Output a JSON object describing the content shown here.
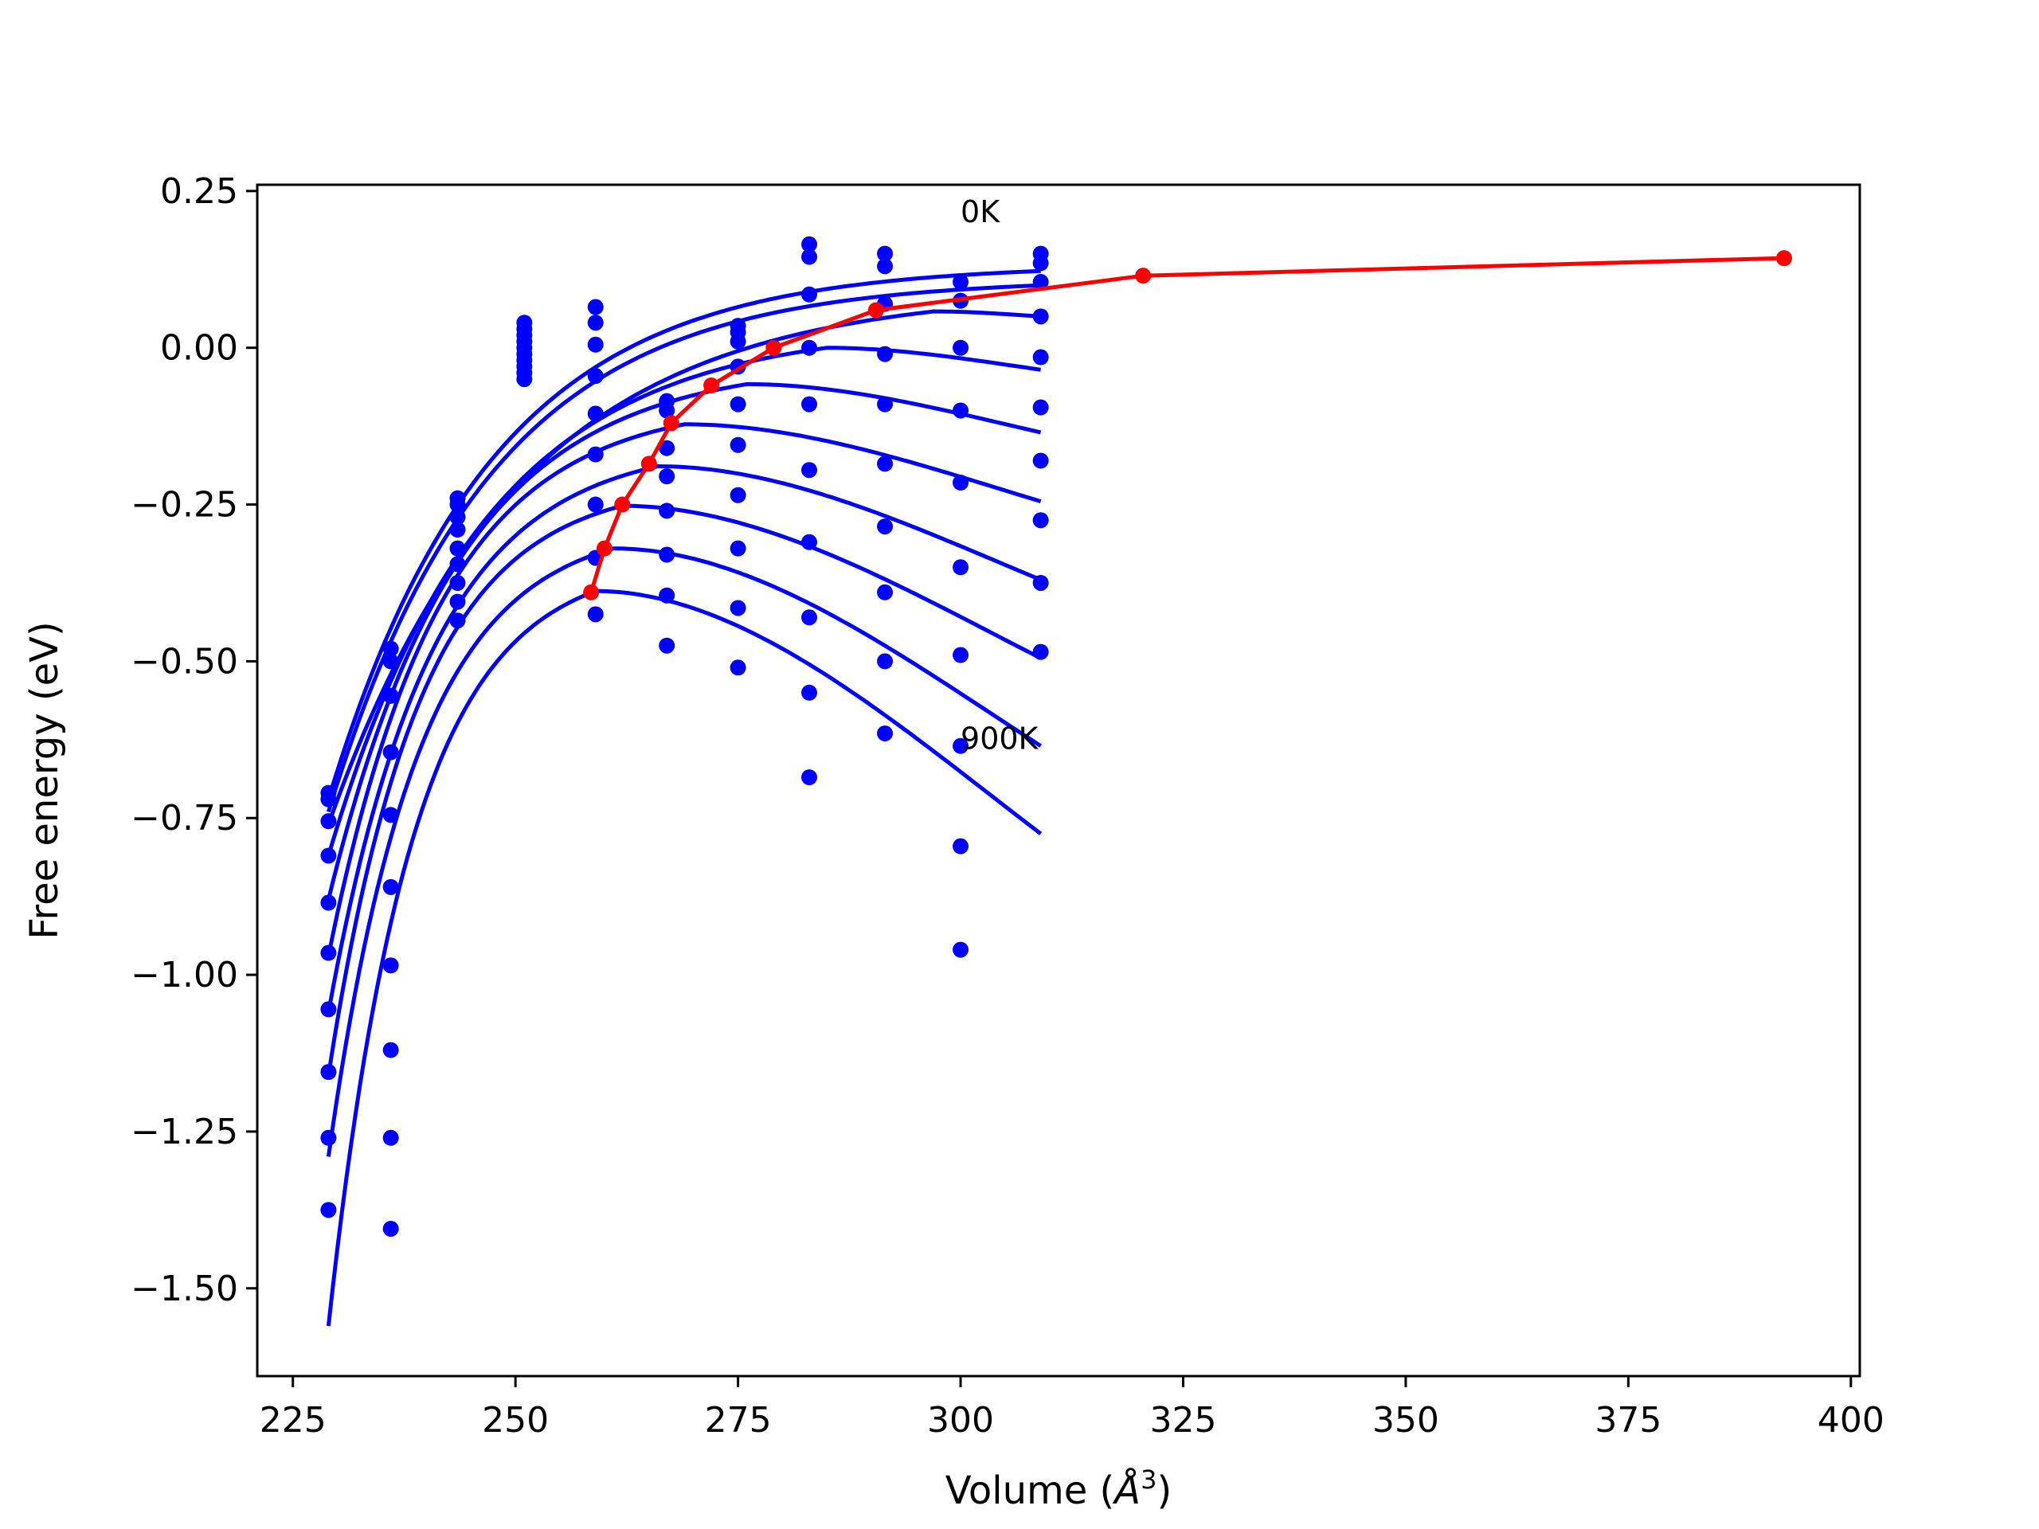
{
  "chart_data": {
    "type": "line",
    "xlabel": "Volume (",
    "xlabel_unit": "Å",
    "xlabel_exp": "3",
    "xlabel_close": ")",
    "ylabel": "Free energy (eV)",
    "xlim": [
      221,
      401
    ],
    "ylim": [
      -1.64,
      0.26
    ],
    "xticks": [
      225,
      250,
      275,
      300,
      325,
      350,
      375,
      400
    ],
    "xtick_labels": [
      "225",
      "250",
      "275",
      "300",
      "325",
      "350",
      "375",
      "400"
    ],
    "yticks": [
      0.25,
      0.0,
      -0.25,
      -0.5,
      -0.75,
      -1.0,
      -1.25,
      -1.5
    ],
    "ytick_labels": [
      "0.25",
      "0.00",
      "−0.25",
      "−0.50",
      "−0.75",
      "−1.00",
      "−1.25",
      "−1.50"
    ],
    "grid": false,
    "legend": "none",
    "colors": {
      "curves": "#0000ff",
      "minima": "#ff0000",
      "axes": "#000000"
    },
    "annotations": [
      {
        "text": "0K",
        "x": 300,
        "y": 0.2
      },
      {
        "text": "900K",
        "x": 300,
        "y": -0.64
      }
    ],
    "fit_x_range": [
      229,
      309
    ],
    "fit_curves": [
      {
        "min": 0.0,
        "max_end": 0.133,
        "e0": -0.72,
        "v0": 229,
        "shape": "rise"
      },
      {
        "min": 0.0,
        "max_end": 0.11,
        "e0": -0.74,
        "v0": 229,
        "shape": "rise"
      },
      {
        "v_peak": 297,
        "e_peak": 0.058,
        "e_end": 0.05,
        "e0": -0.76,
        "v0": 229
      },
      {
        "v_peak": 285,
        "e_peak": 0.0,
        "e_end": -0.035,
        "e0": -0.81,
        "v0": 229
      },
      {
        "v_peak": 276,
        "e_peak": -0.058,
        "e_end": -0.135,
        "e0": -0.88,
        "v0": 229
      },
      {
        "v_peak": 269,
        "e_peak": -0.122,
        "e_end": -0.245,
        "e0": -0.97,
        "v0": 229
      },
      {
        "v_peak": 266,
        "e_peak": -0.189,
        "e_end": -0.37,
        "e0": -1.06,
        "v0": 229
      },
      {
        "v_peak": 262,
        "e_peak": -0.252,
        "e_end": -0.495,
        "e0": -1.16,
        "v0": 229
      },
      {
        "v_peak": 261,
        "e_peak": -0.32,
        "e_end": -0.635,
        "e0": -1.29,
        "v0": 229
      },
      {
        "v_peak": 259,
        "e_peak": -0.388,
        "e_end": -0.775,
        "e0": -1.56,
        "v0": 229
      }
    ],
    "series": [
      {
        "x": [
          229,
          236,
          244,
          251,
          259,
          267,
          275,
          283,
          291.5,
          300,
          309
        ],
        "points": [
          [
            229,
            -0.71
          ],
          [
            229,
            -0.72
          ],
          [
            229,
            -0.755
          ],
          [
            229,
            -0.81
          ],
          [
            229,
            -0.885
          ],
          [
            229,
            -0.965
          ],
          [
            229,
            -1.055
          ],
          [
            229,
            -1.155
          ],
          [
            229,
            -1.26
          ],
          [
            229,
            -1.375
          ],
          [
            236,
            -0.48
          ],
          [
            236,
            -0.5
          ],
          [
            236,
            -0.555
          ],
          [
            236,
            -0.645
          ],
          [
            236,
            -0.745
          ],
          [
            236,
            -0.86
          ],
          [
            236,
            -0.985
          ],
          [
            236,
            -1.12
          ],
          [
            236,
            -1.26
          ],
          [
            236,
            -1.405
          ],
          [
            243.5,
            -0.24
          ],
          [
            243.5,
            -0.25
          ],
          [
            243.5,
            -0.27
          ],
          [
            243.5,
            -0.29
          ],
          [
            243.5,
            -0.32
          ],
          [
            243.5,
            -0.345
          ],
          [
            243.5,
            -0.375
          ],
          [
            243.5,
            -0.405
          ],
          [
            243.5,
            -0.435
          ],
          [
            251,
            0.04
          ],
          [
            251,
            0.03
          ],
          [
            251,
            0.02
          ],
          [
            251,
            0.01
          ],
          [
            251,
            0.0
          ],
          [
            251,
            -0.01
          ],
          [
            251,
            -0.02
          ],
          [
            251,
            -0.03
          ],
          [
            251,
            -0.04
          ],
          [
            251,
            -0.05
          ],
          [
            259,
            0.065
          ],
          [
            259,
            0.04
          ],
          [
            259,
            0.005
          ],
          [
            259,
            -0.045
          ],
          [
            259,
            -0.105
          ],
          [
            259,
            -0.17
          ],
          [
            259,
            -0.25
          ],
          [
            259,
            -0.335
          ],
          [
            259,
            -0.425
          ],
          [
            267,
            -0.085
          ],
          [
            267,
            -0.1
          ],
          [
            267,
            -0.16
          ],
          [
            267,
            -0.205
          ],
          [
            267,
            -0.26
          ],
          [
            267,
            -0.33
          ],
          [
            267,
            -0.395
          ],
          [
            267,
            -0.475
          ],
          [
            275,
            0.035
          ],
          [
            275,
            0.025
          ],
          [
            275,
            0.01
          ],
          [
            275,
            -0.03
          ],
          [
            275,
            -0.09
          ],
          [
            275,
            -0.155
          ],
          [
            275,
            -0.235
          ],
          [
            275,
            -0.32
          ],
          [
            275,
            -0.415
          ],
          [
            275,
            -0.51
          ],
          [
            283,
            0.165
          ],
          [
            283,
            0.145
          ],
          [
            283,
            0.085
          ],
          [
            283,
            0.0
          ],
          [
            283,
            -0.09
          ],
          [
            283,
            -0.195
          ],
          [
            283,
            -0.31
          ],
          [
            283,
            -0.43
          ],
          [
            283,
            -0.55
          ],
          [
            283,
            -0.685
          ],
          [
            291.5,
            0.15
          ],
          [
            291.5,
            0.13
          ],
          [
            291.5,
            0.07
          ],
          [
            291.5,
            -0.01
          ],
          [
            291.5,
            -0.09
          ],
          [
            291.5,
            -0.185
          ],
          [
            291.5,
            -0.285
          ],
          [
            291.5,
            -0.39
          ],
          [
            291.5,
            -0.5
          ],
          [
            291.5,
            -0.615
          ],
          [
            300,
            0.105
          ],
          [
            300,
            0.075
          ],
          [
            300,
            0.0
          ],
          [
            300,
            -0.1
          ],
          [
            300,
            -0.215
          ],
          [
            300,
            -0.35
          ],
          [
            300,
            -0.49
          ],
          [
            300,
            -0.635
          ],
          [
            300,
            -0.795
          ],
          [
            300,
            -0.96
          ],
          [
            309,
            0.15
          ],
          [
            309,
            0.135
          ],
          [
            309,
            0.105
          ],
          [
            309,
            0.05
          ],
          [
            309,
            -0.015
          ],
          [
            309,
            -0.095
          ],
          [
            309,
            -0.18
          ],
          [
            309,
            -0.275
          ],
          [
            309,
            -0.375
          ],
          [
            309,
            -0.485
          ]
        ]
      },
      {
        "name": "",
        "x": [
          258.5,
          260,
          262,
          265,
          267.5,
          272,
          279,
          290.5,
          320.5,
          392.5
        ],
        "values": [
          -0.39,
          -0.32,
          -0.25,
          -0.185,
          -0.12,
          -0.06,
          0.0,
          0.06,
          0.115,
          0.143
        ]
      }
    ]
  }
}
